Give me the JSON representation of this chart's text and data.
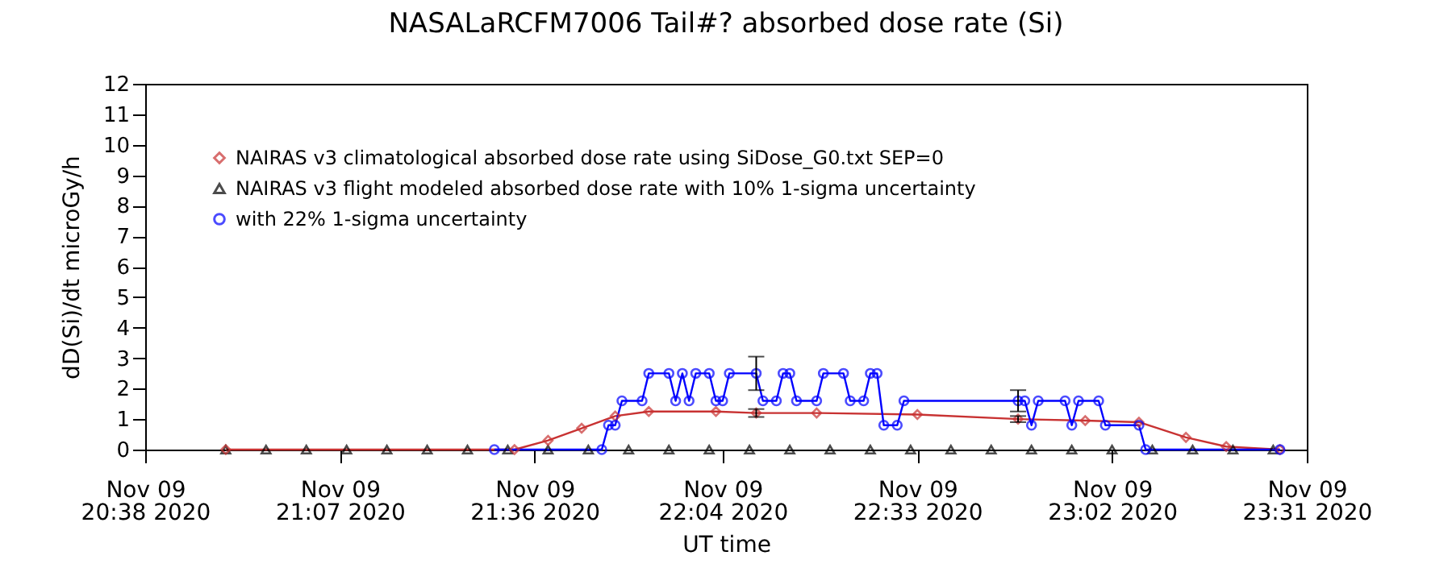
{
  "chart_data": {
    "type": "line",
    "title": "NASALaRCFM7006 Tail#? absorbed dose rate (Si)",
    "xlabel": "UT time",
    "ylabel": "dD(Si)/dt microGy/h",
    "xlim": [
      "2020-11-09T20:38",
      "2020-11-09T23:31"
    ],
    "xticks": [
      {
        "value": "2020-11-09T20:38",
        "label": "Nov 09\n20:38 2020"
      },
      {
        "value": "2020-11-09T21:07",
        "label": "Nov 09\n21:07 2020"
      },
      {
        "value": "2020-11-09T21:36",
        "label": "Nov 09\n21:36 2020"
      },
      {
        "value": "2020-11-09T22:04",
        "label": "Nov 09\n22:04 2020"
      },
      {
        "value": "2020-11-09T22:33",
        "label": "Nov 09\n22:33 2020"
      },
      {
        "value": "2020-11-09T23:02",
        "label": "Nov 09\n23:02 2020"
      },
      {
        "value": "2020-11-09T23:31",
        "label": "Nov 09\n23:31 2020"
      }
    ],
    "ylim": [
      0,
      12
    ],
    "yticks": [
      0,
      1,
      2,
      3,
      4,
      5,
      6,
      7,
      8,
      9,
      10,
      11,
      12
    ],
    "grid": false,
    "legend": "top left",
    "series": [
      {
        "name": "NAIRAS v3 climatological absorbed dose rate using SiDose_G0.txt SEP=0",
        "color": "#c83232",
        "marker": "diamond",
        "x": [
          "2020-11-09T20:50",
          "2020-11-09T21:33",
          "2020-11-09T21:38",
          "2020-11-09T21:43",
          "2020-11-09T21:48",
          "2020-11-09T21:53",
          "2020-11-09T22:03",
          "2020-11-09T22:09",
          "2020-11-09T22:18",
          "2020-11-09T22:33",
          "2020-11-09T22:48",
          "2020-11-09T22:58",
          "2020-11-09T23:06",
          "2020-11-09T23:13",
          "2020-11-09T23:19",
          "2020-11-09T23:27"
        ],
        "values": [
          0,
          0,
          0.3,
          0.7,
          1.1,
          1.25,
          1.25,
          1.2,
          1.2,
          1.15,
          1.0,
          0.95,
          0.9,
          0.4,
          0.1,
          0
        ],
        "errors": [
          null,
          null,
          null,
          null,
          null,
          null,
          null,
          0.13,
          null,
          null,
          0.1,
          null,
          null,
          null,
          null,
          null
        ]
      },
      {
        "name": "NAIRAS v3 flight modeled absorbed dose rate with 10% 1-sigma uncertainty",
        "color": "#000000",
        "type": "scatter",
        "marker": "triangle",
        "x": [
          "2020-11-09T20:50",
          "2020-11-09T20:56",
          "2020-11-09T21:02",
          "2020-11-09T21:08",
          "2020-11-09T21:14",
          "2020-11-09T21:20",
          "2020-11-09T21:26",
          "2020-11-09T21:32",
          "2020-11-09T21:38",
          "2020-11-09T21:44",
          "2020-11-09T21:50",
          "2020-11-09T21:56",
          "2020-11-09T22:02",
          "2020-11-09T22:08",
          "2020-11-09T22:14",
          "2020-11-09T22:20",
          "2020-11-09T22:26",
          "2020-11-09T22:32",
          "2020-11-09T22:38",
          "2020-11-09T22:44",
          "2020-11-09T22:50",
          "2020-11-09T22:56",
          "2020-11-09T23:02",
          "2020-11-09T23:08",
          "2020-11-09T23:14",
          "2020-11-09T23:20",
          "2020-11-09T23:26"
        ],
        "values": [
          0,
          0,
          0,
          0,
          0,
          0,
          0,
          0,
          0,
          0,
          0,
          0,
          0,
          0,
          0,
          0,
          0,
          0,
          0,
          0,
          0,
          0,
          0,
          0,
          0,
          0,
          0
        ]
      },
      {
        "name": "with 22% 1-sigma uncertainty",
        "color": "#0000ff",
        "marker": "circle",
        "x": [
          "2020-11-09T21:30",
          "2020-11-09T21:46",
          "2020-11-09T21:47",
          "2020-11-09T21:48",
          "2020-11-09T21:49",
          "2020-11-09T21:52",
          "2020-11-09T21:53",
          "2020-11-09T21:56",
          "2020-11-09T21:57",
          "2020-11-09T21:58",
          "2020-11-09T21:59",
          "2020-11-09T22:00",
          "2020-11-09T22:02",
          "2020-11-09T22:03",
          "2020-11-09T22:04",
          "2020-11-09T22:05",
          "2020-11-09T22:09",
          "2020-11-09T22:10",
          "2020-11-09T22:12",
          "2020-11-09T22:13",
          "2020-11-09T22:14",
          "2020-11-09T22:15",
          "2020-11-09T22:18",
          "2020-11-09T22:19",
          "2020-11-09T22:22",
          "2020-11-09T22:23",
          "2020-11-09T22:25",
          "2020-11-09T22:26",
          "2020-11-09T22:27",
          "2020-11-09T22:28",
          "2020-11-09T22:30",
          "2020-11-09T22:31",
          "2020-11-09T22:48",
          "2020-11-09T22:49",
          "2020-11-09T22:50",
          "2020-11-09T22:51",
          "2020-11-09T22:55",
          "2020-11-09T22:56",
          "2020-11-09T22:57",
          "2020-11-09T23:00",
          "2020-11-09T23:01",
          "2020-11-09T23:06",
          "2020-11-09T23:07",
          "2020-11-09T23:27"
        ],
        "values": [
          0,
          0,
          0.8,
          0.8,
          1.6,
          1.6,
          2.5,
          2.5,
          1.6,
          2.5,
          1.6,
          2.5,
          2.5,
          1.6,
          1.6,
          2.5,
          2.5,
          1.6,
          1.6,
          2.5,
          2.5,
          1.6,
          1.6,
          2.5,
          2.5,
          1.6,
          1.6,
          2.5,
          2.5,
          0.8,
          0.8,
          1.6,
          1.6,
          1.6,
          0.8,
          1.6,
          1.6,
          0.8,
          1.6,
          1.6,
          0.8,
          0.8,
          0,
          0
        ],
        "errors": [
          null,
          null,
          null,
          null,
          null,
          null,
          null,
          null,
          null,
          null,
          null,
          null,
          null,
          null,
          null,
          null,
          0.55,
          null,
          null,
          null,
          null,
          null,
          null,
          null,
          null,
          null,
          null,
          null,
          null,
          null,
          null,
          null,
          0.35,
          null,
          null,
          null,
          null,
          null,
          null,
          null,
          null,
          null,
          null,
          null
        ]
      }
    ]
  }
}
